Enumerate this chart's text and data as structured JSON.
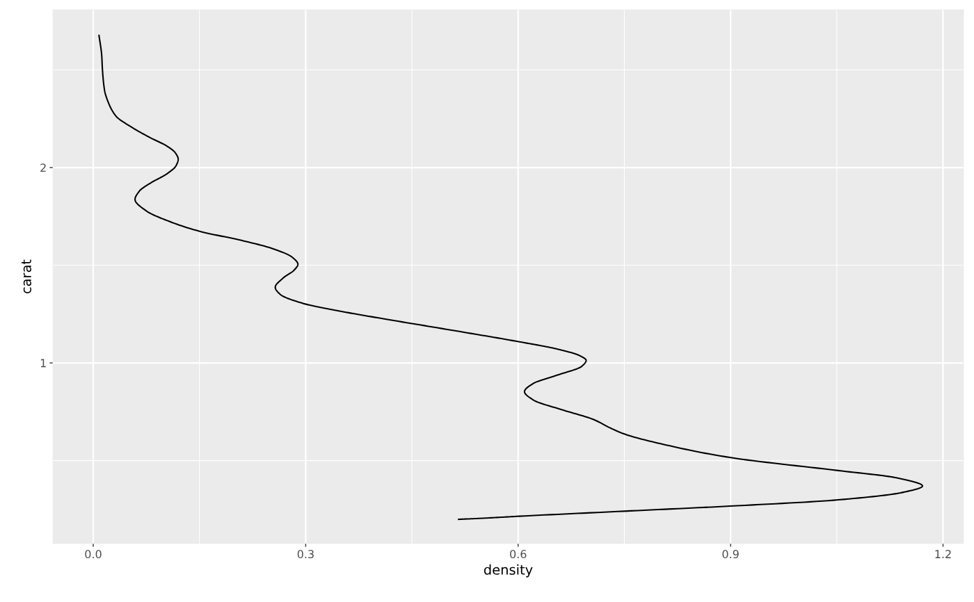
{
  "chart_data": {
    "type": "line",
    "xlabel": "density",
    "ylabel": "carat",
    "series": [
      {
        "color": "#000000",
        "x": [
          0.515,
          0.556,
          0.601,
          0.75,
          0.899,
          1.052,
          1.143,
          1.171,
          1.134,
          1.052,
          0.899,
          0.804,
          0.75,
          0.729,
          0.706,
          0.664,
          0.621,
          0.609,
          0.621,
          0.654,
          0.69,
          0.696,
          0.687,
          0.654,
          0.602,
          0.517,
          0.418,
          0.353,
          0.297,
          0.264,
          0.257,
          0.268,
          0.284,
          0.289,
          0.281,
          0.255,
          0.206,
          0.152,
          0.107,
          0.075,
          0.059,
          0.065,
          0.081,
          0.104,
          0.117,
          0.12,
          0.116,
          0.104,
          0.081,
          0.055,
          0.032,
          0.021,
          0.016,
          0.013,
          0.012,
          0.008
        ],
        "values": [
          0.199,
          0.206,
          0.215,
          0.241,
          0.267,
          0.299,
          0.337,
          0.37,
          0.412,
          0.449,
          0.516,
          0.584,
          0.636,
          0.669,
          0.711,
          0.758,
          0.811,
          0.853,
          0.894,
          0.936,
          0.983,
          1.013,
          1.037,
          1.072,
          1.108,
          1.161,
          1.221,
          1.262,
          1.304,
          1.351,
          1.387,
          1.434,
          1.476,
          1.505,
          1.541,
          1.583,
          1.63,
          1.672,
          1.725,
          1.778,
          1.837,
          1.879,
          1.921,
          1.968,
          2.01,
          2.043,
          2.075,
          2.11,
          2.152,
          2.205,
          2.264,
          2.336,
          2.395,
          2.502,
          2.573,
          2.68
        ]
      }
    ],
    "xlim": [
      -0.057,
      1.229
    ],
    "ylim": [
      0.075,
      2.808
    ],
    "xticks": [
      {
        "value": 0,
        "label": "0.0"
      },
      {
        "value": 0.15,
        "label": null
      },
      0.3,
      {
        "value": 0.45,
        "label": null
      },
      0.6,
      {
        "value": 0.75,
        "label": null
      },
      0.9,
      {
        "value": 1.05,
        "label": null
      },
      1.2
    ],
    "yticks": [
      {
        "value": 0.5,
        "label": null
      },
      1,
      {
        "value": 1.5,
        "label": null
      },
      2,
      {
        "value": 2.5,
        "label": null
      }
    ],
    "grid": true
  }
}
